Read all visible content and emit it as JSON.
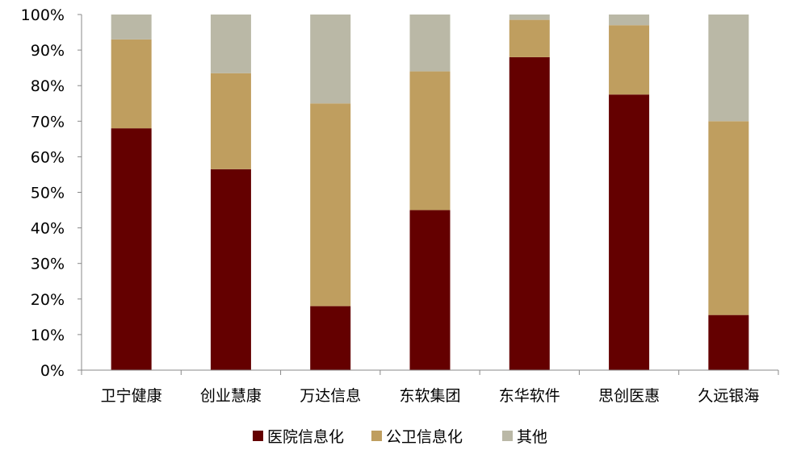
{
  "chart_data": {
    "type": "bar",
    "stacked": true,
    "categories": [
      "卫宁健康",
      "创业慧康",
      "万达信息",
      "东软集团",
      "东华软件",
      "思创医惠",
      "久远银海"
    ],
    "series": [
      {
        "name": "医院信息化",
        "color": "#640000",
        "values": [
          68,
          56.5,
          18,
          45,
          88,
          77.5,
          15.5
        ]
      },
      {
        "name": "公卫信息化",
        "color": "#BF9E5F",
        "values": [
          25,
          27,
          57,
          39,
          10.5,
          19.5,
          54.5
        ]
      },
      {
        "name": "其他",
        "color": "#BAB8A6",
        "values": [
          7,
          16.5,
          25,
          16,
          1.5,
          3,
          30
        ]
      }
    ],
    "ylim": [
      0,
      100
    ],
    "yticks": [
      "0%",
      "10%",
      "20%",
      "30%",
      "40%",
      "50%",
      "60%",
      "70%",
      "80%",
      "90%",
      "100%"
    ],
    "grid": false,
    "legend": "bottom"
  }
}
